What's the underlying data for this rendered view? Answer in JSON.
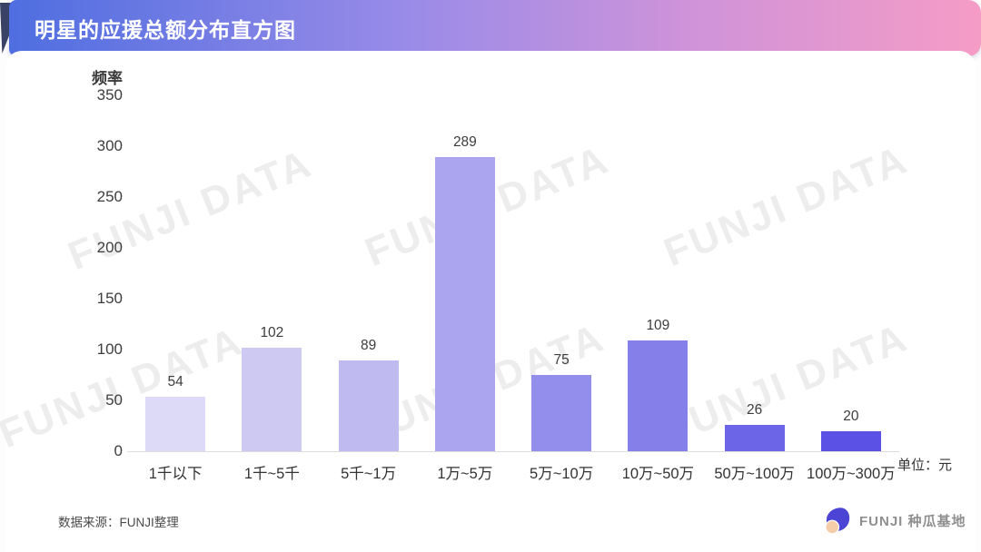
{
  "header": {
    "title": "明星的应援总额分布直方图"
  },
  "chart_data": {
    "type": "bar",
    "title": "明星的应援总额分布直方图",
    "ylabel": "频率",
    "xlabel": "",
    "unit_label": "单位：元",
    "categories": [
      "1千以下",
      "1千~5千",
      "5千~1万",
      "1万~5万",
      "5万~10万",
      "10万~50万",
      "50万~100万",
      "100万~300万"
    ],
    "values": [
      54,
      102,
      89,
      289,
      75,
      109,
      26,
      20
    ],
    "y_ticks": [
      0,
      50,
      100,
      150,
      200,
      250,
      300,
      350
    ],
    "ylim": [
      0,
      350
    ],
    "grid": false,
    "legend": "none",
    "bar_colors": [
      "#dcdaf6",
      "#cdc9f3",
      "#bfbbf1",
      "#aaa5ee",
      "#938dec",
      "#857fe9",
      "#6d65e7",
      "#5b51e4"
    ]
  },
  "watermark": {
    "text": "FUNJI DATA",
    "color": "#ededed"
  },
  "footer": {
    "source_label": "数据来源：FUNJI整理",
    "brand_name": "FUNJI 种瓜基地",
    "logo_blue": "#4b44d4",
    "logo_peach": "#f4cda9"
  },
  "theme": {
    "header_gradient": [
      "#4f6ee0",
      "#9b8ce8",
      "#cf93d9",
      "#f59cc6"
    ],
    "fold_color": "#3a4266",
    "axis_line_color": "#dcdcdc",
    "text_color": "#3d3d3d"
  }
}
